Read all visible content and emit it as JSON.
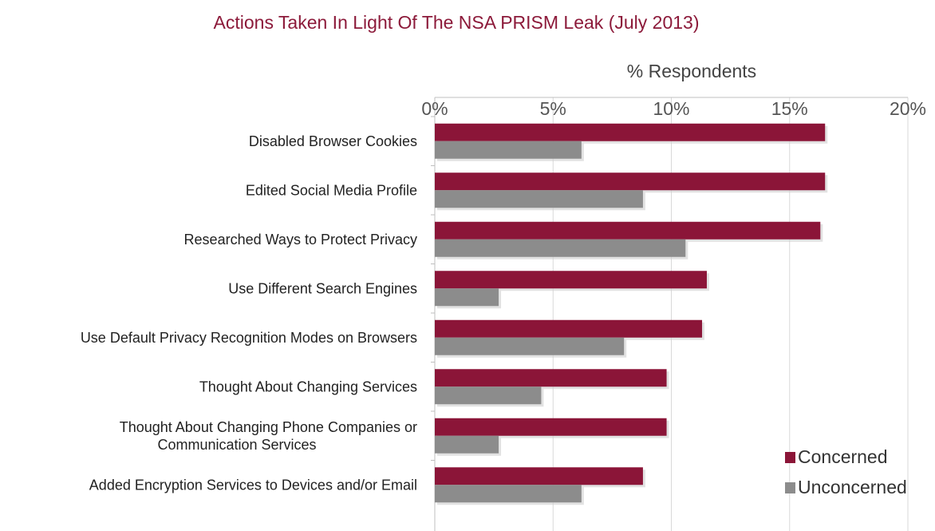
{
  "chart_data": {
    "type": "bar",
    "orientation": "horizontal",
    "title": "Actions Taken In Light Of The NSA PRISM Leak (July 2013)",
    "xlabel": "% Respondents",
    "ylabel": "",
    "xlim": [
      0,
      20
    ],
    "xticks": [
      "0%",
      "5%",
      "10%",
      "15%",
      "20%"
    ],
    "xaxis_position": "top",
    "grid": true,
    "legend_position": "bottom-right",
    "categories": [
      [
        "Disabled Browser Cookies"
      ],
      [
        "Edited Social Media Profile"
      ],
      [
        "Researched Ways to Protect Privacy"
      ],
      [
        "Use Different Search Engines"
      ],
      [
        "Use Default Privacy Recognition Modes on Browsers"
      ],
      [
        "Thought About Changing Services"
      ],
      [
        "Thought About Changing Phone Companies or",
        "Communication Services"
      ],
      [
        "Added Encryption Services to Devices and/or Email"
      ]
    ],
    "series": [
      {
        "name": "Concerned",
        "color": "#8b1538",
        "values": [
          16.5,
          16.5,
          16.3,
          11.5,
          11.3,
          9.8,
          9.8,
          8.8
        ]
      },
      {
        "name": "Unconcerned",
        "color": "#8c8c8c",
        "values": [
          6.2,
          8.8,
          10.6,
          2.7,
          8.0,
          4.5,
          2.7,
          6.2
        ]
      }
    ]
  }
}
